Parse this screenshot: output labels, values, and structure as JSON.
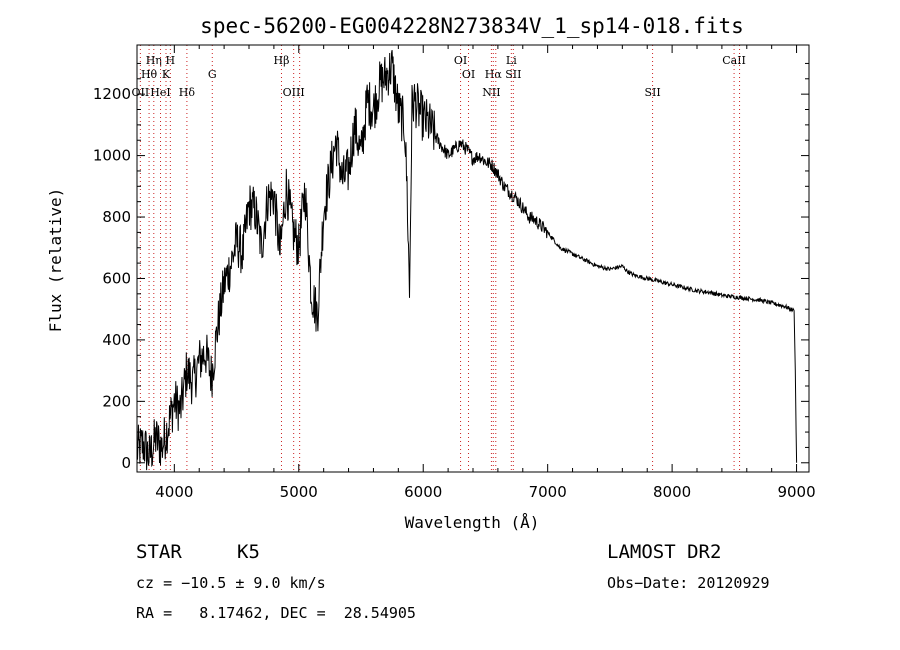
{
  "chart_data": {
    "type": "line",
    "title": "spec-56200-EG004228N273834V_1_sp14-018.fits",
    "xlabel": "Wavelength (Å)",
    "ylabel": "Flux (relative)",
    "xlim": [
      3700,
      9100
    ],
    "ylim": [
      -30,
      1360
    ],
    "x_ticks": [
      4000,
      5000,
      6000,
      7000,
      8000,
      9000
    ],
    "y_ticks": [
      0,
      200,
      400,
      600,
      800,
      1000,
      1200
    ],
    "grid": false,
    "line_color": "#000000",
    "line_marker_color": "#cc2222",
    "series": [
      {
        "x": [
          3700,
          3750,
          3800,
          3850,
          3900,
          3950,
          4000,
          4050,
          4100,
          4150,
          4200,
          4250,
          4300,
          4350,
          4400,
          4450,
          4500,
          4550,
          4600,
          4650,
          4700,
          4750,
          4800,
          4850,
          4900,
          4950,
          5000,
          5050,
          5100,
          5150,
          5200,
          5250,
          5300,
          5350,
          5400,
          5450,
          5500,
          5550,
          5600,
          5650,
          5700,
          5750,
          5800,
          5850,
          5870,
          5890,
          5910,
          5930,
          5950,
          6000,
          6050,
          6100,
          6150,
          6200,
          6250,
          6300,
          6350,
          6400,
          6450,
          6500,
          6550,
          6600,
          6650,
          6700,
          6750,
          6800,
          6850,
          6900,
          6950,
          7000,
          7100,
          7200,
          7300,
          7400,
          7500,
          7600,
          7650,
          7700,
          7800,
          7900,
          8000,
          8100,
          8200,
          8300,
          8400,
          8500,
          8600,
          8700,
          8800,
          8900,
          8980,
          8990,
          9000
        ],
        "y": [
          40,
          60,
          20,
          80,
          50,
          120,
          200,
          170,
          300,
          260,
          330,
          360,
          280,
          450,
          580,
          640,
          720,
          680,
          840,
          820,
          700,
          860,
          870,
          680,
          900,
          760,
          700,
          890,
          560,
          480,
          820,
          940,
          1050,
          920,
          950,
          1100,
          1000,
          1180,
          1150,
          1230,
          1260,
          1290,
          1150,
          1100,
          900,
          550,
          1160,
          1180,
          1160,
          1120,
          1100,
          1060,
          1030,
          1000,
          1020,
          1040,
          1020,
          990,
          1000,
          980,
          970,
          940,
          900,
          880,
          860,
          830,
          800,
          790,
          770,
          750,
          700,
          680,
          660,
          640,
          630,
          640,
          620,
          610,
          600,
          590,
          580,
          570,
          560,
          555,
          545,
          540,
          535,
          530,
          520,
          510,
          495,
          300,
          0
        ]
      }
    ],
    "line_markers": [
      {
        "label": "Hη",
        "x": 3835
      },
      {
        "label": "H",
        "x": 3968
      },
      {
        "label": "Hθ",
        "x": 3797
      },
      {
        "label": "K",
        "x": 3933
      },
      {
        "label": "OII",
        "x": 3727
      },
      {
        "label": "HeI",
        "x": 3889
      },
      {
        "label": "Hδ",
        "x": 4101
      },
      {
        "label": "G",
        "x": 4305
      },
      {
        "label": "Hβ",
        "x": 4861
      },
      {
        "label": "OIII",
        "x": 4959
      },
      {
        "label": "OIII",
        "x": 5007
      },
      {
        "label": "OI",
        "x": 6300
      },
      {
        "label": "OI",
        "x": 6364
      },
      {
        "label": "Li",
        "x": 6708
      },
      {
        "label": "Hα",
        "x": 6563
      },
      {
        "label": "SII",
        "x": 6724
      },
      {
        "label": "NII",
        "x": 6548
      },
      {
        "label": "NII",
        "x": 6583
      },
      {
        "label": "SII",
        "x": 7843
      },
      {
        "label": "CaII",
        "x": 8498
      },
      {
        "label": "CaII",
        "x": 8542
      }
    ]
  },
  "info": {
    "class_type": "STAR",
    "subclass": "K5",
    "survey": "LAMOST DR2",
    "cz": "cz = −10.5 ± 9.0 km/s",
    "obs_date": "Obs−Date: 20120929",
    "coords": "RA =   8.17462, DEC =  28.54905"
  }
}
